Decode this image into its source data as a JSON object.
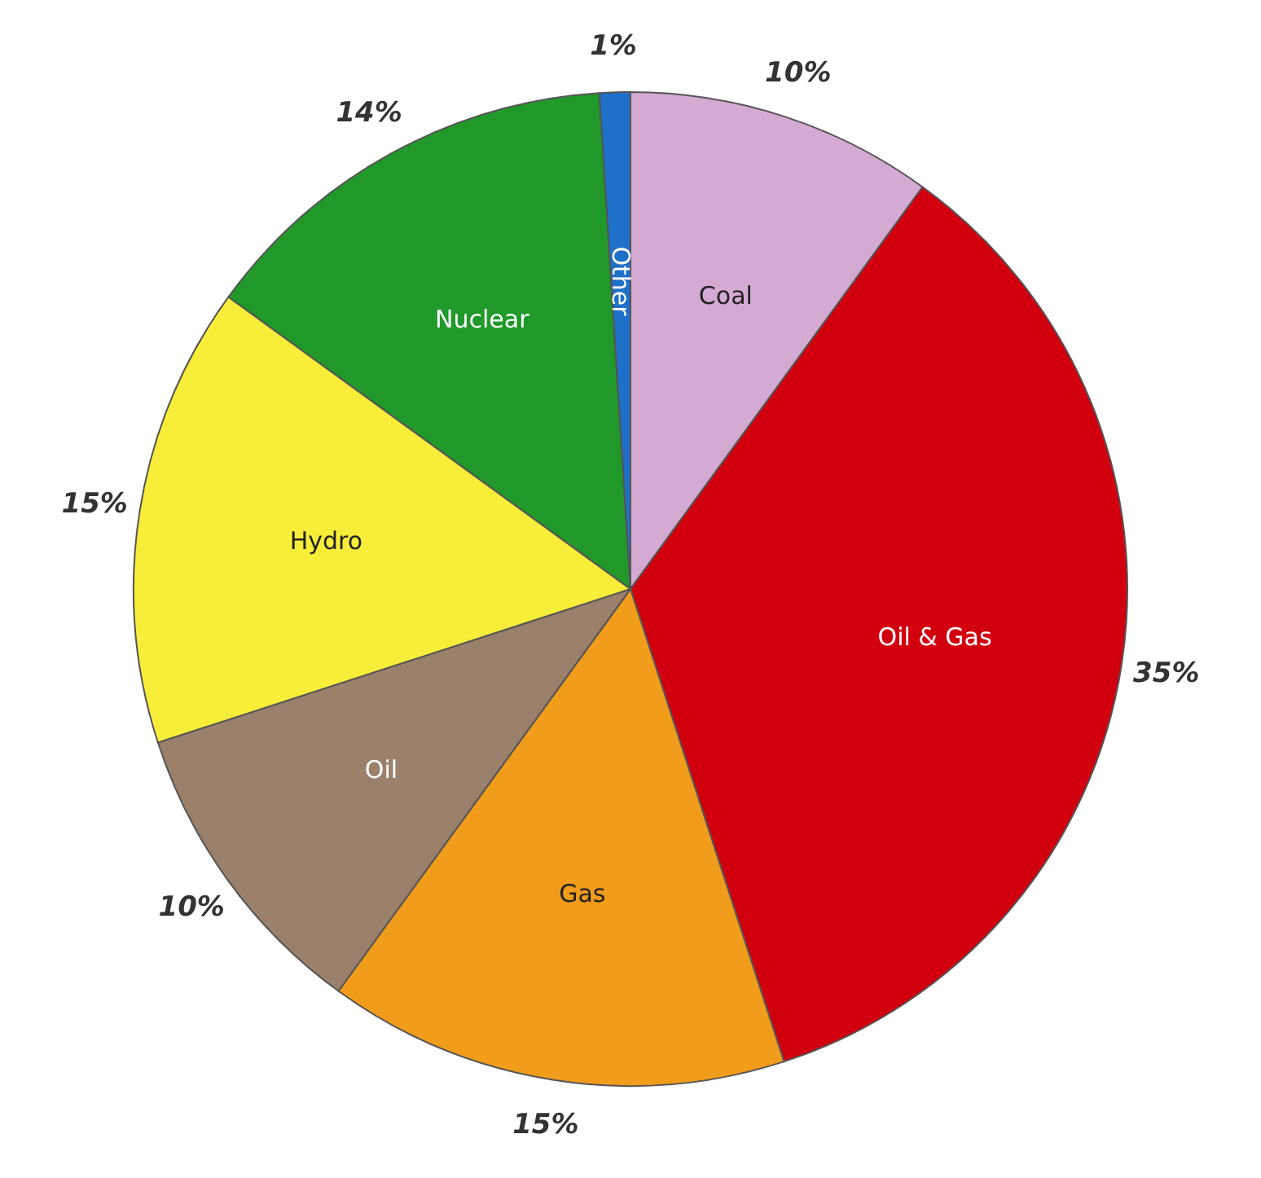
{
  "chart_data": {
    "type": "pie",
    "categories": [
      "Coal",
      "Oil & Gas",
      "Gas",
      "Oil",
      "Hydro",
      "Nuclear",
      "Other"
    ],
    "values": [
      10,
      35,
      15,
      10,
      15,
      14,
      1
    ],
    "colors": [
      "#d4aad2",
      "#d2000f",
      "#f29c1b",
      "#9b806b",
      "#f8ee3a",
      "#20992a",
      "#1f70c8"
    ],
    "value_labels": [
      "10%",
      "35%",
      "15%",
      "10%",
      "15%",
      "14%",
      "1%"
    ]
  }
}
